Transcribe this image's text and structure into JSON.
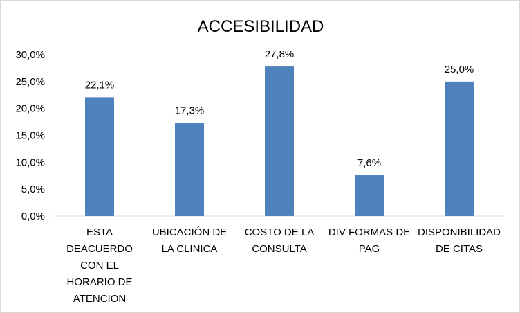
{
  "chart_data": {
    "type": "bar",
    "title": "ACCESIBILIDAD",
    "categories": [
      [
        "ESTA",
        "DEACUERDO",
        "CON EL",
        "HORARIO DE",
        "ATENCION"
      ],
      [
        "UBICACIÓN DE",
        "LA CLINICA"
      ],
      [
        "COSTO DE LA",
        "CONSULTA"
      ],
      [
        "DIV FORMAS DE",
        "PAG"
      ],
      [
        "DISPONIBILIDAD",
        "DE CITAS"
      ]
    ],
    "values": [
      22.1,
      17.3,
      27.8,
      7.6,
      25.0
    ],
    "data_labels": [
      "22,1%",
      "17,3%",
      "27,8%",
      "7,6%",
      "25,0%"
    ],
    "ylim": [
      0,
      30
    ],
    "yticks": [
      {
        "value": 0,
        "label": "0,0%"
      },
      {
        "value": 5,
        "label": "5,0%"
      },
      {
        "value": 10,
        "label": "10,0%"
      },
      {
        "value": 15,
        "label": "15,0%"
      },
      {
        "value": 20,
        "label": "20,0%"
      },
      {
        "value": 25,
        "label": "25,0%"
      },
      {
        "value": 30,
        "label": "30,0%"
      }
    ],
    "xlabel": "",
    "ylabel": "",
    "grid": false,
    "colors": {
      "bar": "#4f81bd",
      "axis": "#d9d9d9",
      "text": "#000000"
    }
  }
}
